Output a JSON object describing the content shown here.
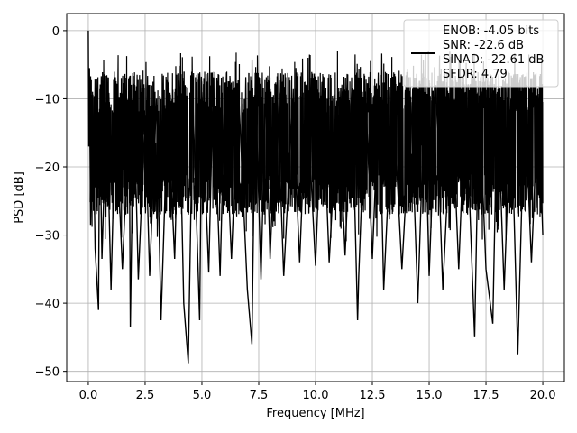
{
  "chart_data": {
    "type": "line",
    "title": "",
    "xlabel": "Frequency [MHz]",
    "ylabel": "PSD [dB]",
    "xlim": [
      -0.95,
      20.95
    ],
    "ylim": [
      -51.5,
      2.5
    ],
    "x_ticks": [
      0.0,
      2.5,
      5.0,
      7.5,
      10.0,
      12.5,
      15.0,
      17.5,
      20.0
    ],
    "x_tick_labels": [
      "0.0",
      "2.5",
      "5.0",
      "7.5",
      "10.0",
      "12.5",
      "15.0",
      "17.5",
      "20.0"
    ],
    "y_ticks": [
      0,
      -10,
      -20,
      -30,
      -40,
      -50
    ],
    "y_tick_labels": [
      "0",
      "−10",
      "−20",
      "−30",
      "−40",
      "−50"
    ],
    "grid": true,
    "legend": {
      "placement": "top-right",
      "entries": [
        "ENOB: -4.05 bits",
        "SNR: -22.6 dB",
        "SINAD: -22.61 dB",
        "SFDR: 4.79"
      ]
    },
    "series": [
      {
        "color": "#000000",
        "x": [
          0.0,
          0.02,
          0.05,
          0.1,
          0.2,
          0.3,
          0.45,
          0.5,
          0.6,
          0.8,
          1.0,
          1.2,
          1.5,
          1.8,
          1.85,
          2.0,
          2.2,
          2.5,
          2.7,
          3.0,
          3.2,
          3.5,
          3.8,
          4.0,
          4.2,
          4.4,
          4.6,
          4.9,
          5.0,
          5.3,
          5.5,
          5.8,
          6.0,
          6.3,
          6.6,
          7.0,
          7.2,
          7.35,
          7.6,
          7.8,
          8.0,
          8.3,
          8.6,
          9.0,
          9.3,
          9.6,
          10.0,
          10.3,
          10.6,
          11.0,
          11.3,
          11.6,
          11.85,
          11.9,
          12.2,
          12.5,
          12.8,
          13.0,
          13.4,
          13.8,
          14.2,
          14.5,
          14.8,
          15.0,
          15.3,
          15.6,
          16.0,
          16.3,
          16.6,
          17.0,
          17.2,
          17.5,
          17.8,
          18.0,
          18.3,
          18.6,
          18.9,
          19.2,
          19.5,
          19.8,
          20.0
        ],
        "y": [
          0.0,
          -17.0,
          -5.5,
          -28.5,
          -10.0,
          -32.0,
          -41.0,
          -11.5,
          -33.5,
          -10.5,
          -38.0,
          -11.5,
          -35.0,
          -12.0,
          -43.5,
          -8.5,
          -36.5,
          -12.5,
          -36.0,
          -10.0,
          -42.5,
          -11.0,
          -33.5,
          -8.5,
          -40.0,
          -48.8,
          -10.0,
          -42.5,
          -9.0,
          -35.5,
          -7.0,
          -36.0,
          -9.5,
          -33.5,
          -8.0,
          -38.0,
          -46.0,
          -7.5,
          -36.5,
          -9.0,
          -33.5,
          -8.0,
          -36.0,
          -10.0,
          -34.0,
          -8.5,
          -34.5,
          -7.5,
          -34.0,
          -9.0,
          -33.0,
          -8.5,
          -42.5,
          -36.0,
          -9.0,
          -33.5,
          -8.0,
          -38.0,
          -9.0,
          -35.0,
          -10.5,
          -40.0,
          -9.0,
          -36.0,
          -8.0,
          -38.0,
          -10.0,
          -35.0,
          -9.0,
          -45.0,
          -9.5,
          -35.0,
          -43.0,
          -9.0,
          -38.0,
          -10.0,
          -47.5,
          -9.5,
          -34.0,
          -10.0,
          -30.0
        ]
      }
    ]
  }
}
